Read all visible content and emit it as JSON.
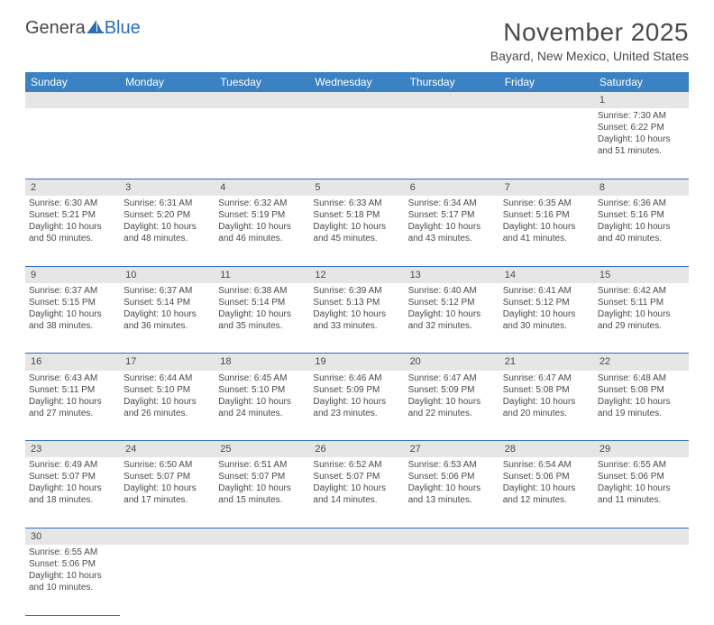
{
  "logo": {
    "part1": "Genera",
    "part2": "Blue"
  },
  "title": "November 2025",
  "location": "Bayard, New Mexico, United States",
  "colors": {
    "header_bg": "#3b82c4",
    "header_text": "#ffffff",
    "daynum_bg": "#e6e6e6",
    "border": "#2d6fb5",
    "text": "#4a4a4a",
    "logo_blue": "#2d6fb5"
  },
  "weekdays": [
    "Sunday",
    "Monday",
    "Tuesday",
    "Wednesday",
    "Thursday",
    "Friday",
    "Saturday"
  ],
  "weeks": [
    [
      null,
      null,
      null,
      null,
      null,
      null,
      {
        "n": "1",
        "sr": "Sunrise: 7:30 AM",
        "ss": "Sunset: 6:22 PM",
        "d1": "Daylight: 10 hours",
        "d2": "and 51 minutes."
      }
    ],
    [
      {
        "n": "2",
        "sr": "Sunrise: 6:30 AM",
        "ss": "Sunset: 5:21 PM",
        "d1": "Daylight: 10 hours",
        "d2": "and 50 minutes."
      },
      {
        "n": "3",
        "sr": "Sunrise: 6:31 AM",
        "ss": "Sunset: 5:20 PM",
        "d1": "Daylight: 10 hours",
        "d2": "and 48 minutes."
      },
      {
        "n": "4",
        "sr": "Sunrise: 6:32 AM",
        "ss": "Sunset: 5:19 PM",
        "d1": "Daylight: 10 hours",
        "d2": "and 46 minutes."
      },
      {
        "n": "5",
        "sr": "Sunrise: 6:33 AM",
        "ss": "Sunset: 5:18 PM",
        "d1": "Daylight: 10 hours",
        "d2": "and 45 minutes."
      },
      {
        "n": "6",
        "sr": "Sunrise: 6:34 AM",
        "ss": "Sunset: 5:17 PM",
        "d1": "Daylight: 10 hours",
        "d2": "and 43 minutes."
      },
      {
        "n": "7",
        "sr": "Sunrise: 6:35 AM",
        "ss": "Sunset: 5:16 PM",
        "d1": "Daylight: 10 hours",
        "d2": "and 41 minutes."
      },
      {
        "n": "8",
        "sr": "Sunrise: 6:36 AM",
        "ss": "Sunset: 5:16 PM",
        "d1": "Daylight: 10 hours",
        "d2": "and 40 minutes."
      }
    ],
    [
      {
        "n": "9",
        "sr": "Sunrise: 6:37 AM",
        "ss": "Sunset: 5:15 PM",
        "d1": "Daylight: 10 hours",
        "d2": "and 38 minutes."
      },
      {
        "n": "10",
        "sr": "Sunrise: 6:37 AM",
        "ss": "Sunset: 5:14 PM",
        "d1": "Daylight: 10 hours",
        "d2": "and 36 minutes."
      },
      {
        "n": "11",
        "sr": "Sunrise: 6:38 AM",
        "ss": "Sunset: 5:14 PM",
        "d1": "Daylight: 10 hours",
        "d2": "and 35 minutes."
      },
      {
        "n": "12",
        "sr": "Sunrise: 6:39 AM",
        "ss": "Sunset: 5:13 PM",
        "d1": "Daylight: 10 hours",
        "d2": "and 33 minutes."
      },
      {
        "n": "13",
        "sr": "Sunrise: 6:40 AM",
        "ss": "Sunset: 5:12 PM",
        "d1": "Daylight: 10 hours",
        "d2": "and 32 minutes."
      },
      {
        "n": "14",
        "sr": "Sunrise: 6:41 AM",
        "ss": "Sunset: 5:12 PM",
        "d1": "Daylight: 10 hours",
        "d2": "and 30 minutes."
      },
      {
        "n": "15",
        "sr": "Sunrise: 6:42 AM",
        "ss": "Sunset: 5:11 PM",
        "d1": "Daylight: 10 hours",
        "d2": "and 29 minutes."
      }
    ],
    [
      {
        "n": "16",
        "sr": "Sunrise: 6:43 AM",
        "ss": "Sunset: 5:11 PM",
        "d1": "Daylight: 10 hours",
        "d2": "and 27 minutes."
      },
      {
        "n": "17",
        "sr": "Sunrise: 6:44 AM",
        "ss": "Sunset: 5:10 PM",
        "d1": "Daylight: 10 hours",
        "d2": "and 26 minutes."
      },
      {
        "n": "18",
        "sr": "Sunrise: 6:45 AM",
        "ss": "Sunset: 5:10 PM",
        "d1": "Daylight: 10 hours",
        "d2": "and 24 minutes."
      },
      {
        "n": "19",
        "sr": "Sunrise: 6:46 AM",
        "ss": "Sunset: 5:09 PM",
        "d1": "Daylight: 10 hours",
        "d2": "and 23 minutes."
      },
      {
        "n": "20",
        "sr": "Sunrise: 6:47 AM",
        "ss": "Sunset: 5:09 PM",
        "d1": "Daylight: 10 hours",
        "d2": "and 22 minutes."
      },
      {
        "n": "21",
        "sr": "Sunrise: 6:47 AM",
        "ss": "Sunset: 5:08 PM",
        "d1": "Daylight: 10 hours",
        "d2": "and 20 minutes."
      },
      {
        "n": "22",
        "sr": "Sunrise: 6:48 AM",
        "ss": "Sunset: 5:08 PM",
        "d1": "Daylight: 10 hours",
        "d2": "and 19 minutes."
      }
    ],
    [
      {
        "n": "23",
        "sr": "Sunrise: 6:49 AM",
        "ss": "Sunset: 5:07 PM",
        "d1": "Daylight: 10 hours",
        "d2": "and 18 minutes."
      },
      {
        "n": "24",
        "sr": "Sunrise: 6:50 AM",
        "ss": "Sunset: 5:07 PM",
        "d1": "Daylight: 10 hours",
        "d2": "and 17 minutes."
      },
      {
        "n": "25",
        "sr": "Sunrise: 6:51 AM",
        "ss": "Sunset: 5:07 PM",
        "d1": "Daylight: 10 hours",
        "d2": "and 15 minutes."
      },
      {
        "n": "26",
        "sr": "Sunrise: 6:52 AM",
        "ss": "Sunset: 5:07 PM",
        "d1": "Daylight: 10 hours",
        "d2": "and 14 minutes."
      },
      {
        "n": "27",
        "sr": "Sunrise: 6:53 AM",
        "ss": "Sunset: 5:06 PM",
        "d1": "Daylight: 10 hours",
        "d2": "and 13 minutes."
      },
      {
        "n": "28",
        "sr": "Sunrise: 6:54 AM",
        "ss": "Sunset: 5:06 PM",
        "d1": "Daylight: 10 hours",
        "d2": "and 12 minutes."
      },
      {
        "n": "29",
        "sr": "Sunrise: 6:55 AM",
        "ss": "Sunset: 5:06 PM",
        "d1": "Daylight: 10 hours",
        "d2": "and 11 minutes."
      }
    ],
    [
      {
        "n": "30",
        "sr": "Sunrise: 6:55 AM",
        "ss": "Sunset: 5:06 PM",
        "d1": "Daylight: 10 hours",
        "d2": "and 10 minutes."
      },
      null,
      null,
      null,
      null,
      null,
      null
    ]
  ]
}
